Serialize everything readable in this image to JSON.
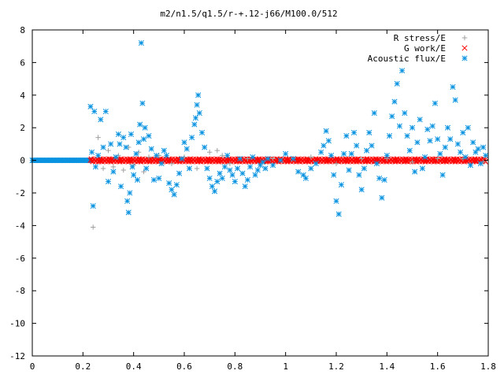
{
  "chart_data": {
    "type": "scatter",
    "title": "m2/n1.5/q1.5/r-+.12-j66/M100.0/512",
    "xlabel": "",
    "ylabel": "",
    "xlim": [
      0,
      1.8
    ],
    "ylim": [
      -12,
      8
    ],
    "xticks": [
      0,
      0.2,
      0.4,
      0.6,
      0.8,
      1,
      1.2,
      1.4,
      1.6,
      1.8
    ],
    "yticks": [
      -12,
      -10,
      -8,
      -6,
      -4,
      -2,
      0,
      2,
      4,
      6,
      8
    ],
    "xtick_labels": [
      "0",
      "0.2",
      "0.4",
      "0.6",
      "0.8",
      "1",
      "1.2",
      "1.4",
      "1.6",
      "1.8"
    ],
    "ytick_labels": [
      "-12",
      "-10",
      "-8",
      "-6",
      "-4",
      "-2",
      "0",
      "2",
      "4",
      "6",
      "8"
    ],
    "grid": false,
    "legend_position": "top-right",
    "series": [
      {
        "name": "R stress/E",
        "marker": "plus",
        "color": "#a0a0a0",
        "points": [
          [
            0.24,
            -4.1
          ],
          [
            0.26,
            1.4
          ],
          [
            0.28,
            -0.5
          ],
          [
            0.3,
            0.6
          ],
          [
            0.32,
            -0.4
          ],
          [
            0.34,
            0.3
          ],
          [
            0.36,
            -0.6
          ],
          [
            0.38,
            0.8
          ],
          [
            0.4,
            -0.3
          ],
          [
            0.42,
            0.5
          ],
          [
            0.44,
            -0.7
          ],
          [
            0.46,
            0.2
          ],
          [
            0.5,
            0.3
          ],
          [
            0.55,
            -0.2
          ],
          [
            0.6,
            0.2
          ],
          [
            0.65,
            -0.5
          ],
          [
            0.7,
            0.5
          ],
          [
            0.73,
            0.6
          ],
          [
            0.75,
            0.3
          ],
          [
            0.78,
            -0.2
          ],
          [
            0.85,
            0.1
          ],
          [
            0.95,
            0.1
          ],
          [
            1.1,
            0.2
          ],
          [
            1.2,
            -0.2
          ],
          [
            1.3,
            0.1
          ],
          [
            1.4,
            0.1
          ],
          [
            1.5,
            -0.1
          ],
          [
            1.6,
            0.1
          ],
          [
            1.7,
            0.1
          ],
          [
            1.78,
            -0.1
          ]
        ]
      },
      {
        "name": "G work/E",
        "marker": "cross",
        "color": "#ff0000",
        "x_range": [
          0.23,
          1.79
        ],
        "y_approx": 0.0,
        "spread": 0.08
      },
      {
        "name": "Acoustic flux/E",
        "marker": "star",
        "color": "#0a93e0",
        "baseline_x_range": [
          0,
          0.23
        ],
        "baseline_y": 0.0,
        "points": [
          [
            0.23,
            3.3
          ],
          [
            0.235,
            0.5
          ],
          [
            0.24,
            -2.8
          ],
          [
            0.245,
            3.0
          ],
          [
            0.25,
            -0.4
          ],
          [
            0.26,
            0.3
          ],
          [
            0.27,
            2.5
          ],
          [
            0.28,
            0.8
          ],
          [
            0.29,
            3.0
          ],
          [
            0.3,
            -1.3
          ],
          [
            0.31,
            1.0
          ],
          [
            0.32,
            -0.7
          ],
          [
            0.33,
            0.2
          ],
          [
            0.34,
            1.6
          ],
          [
            0.345,
            1.0
          ],
          [
            0.35,
            -1.6
          ],
          [
            0.36,
            1.4
          ],
          [
            0.37,
            0.8
          ],
          [
            0.375,
            -2.5
          ],
          [
            0.38,
            -3.2
          ],
          [
            0.385,
            -2.0
          ],
          [
            0.39,
            1.6
          ],
          [
            0.395,
            -0.4
          ],
          [
            0.4,
            -0.9
          ],
          [
            0.41,
            0.4
          ],
          [
            0.415,
            -1.2
          ],
          [
            0.42,
            1.1
          ],
          [
            0.425,
            2.2
          ],
          [
            0.43,
            7.2
          ],
          [
            0.435,
            3.5
          ],
          [
            0.44,
            1.3
          ],
          [
            0.445,
            2.0
          ],
          [
            0.45,
            -0.5
          ],
          [
            0.46,
            1.5
          ],
          [
            0.47,
            0.7
          ],
          [
            0.48,
            -1.2
          ],
          [
            0.49,
            0.3
          ],
          [
            0.5,
            -1.1
          ],
          [
            0.51,
            -0.2
          ],
          [
            0.52,
            0.6
          ],
          [
            0.53,
            0.3
          ],
          [
            0.54,
            -1.4
          ],
          [
            0.55,
            -1.8
          ],
          [
            0.56,
            -2.1
          ],
          [
            0.57,
            -1.5
          ],
          [
            0.58,
            -0.8
          ],
          [
            0.59,
            0.1
          ],
          [
            0.6,
            1.1
          ],
          [
            0.61,
            0.7
          ],
          [
            0.62,
            -0.5
          ],
          [
            0.63,
            1.4
          ],
          [
            0.64,
            2.2
          ],
          [
            0.645,
            2.6
          ],
          [
            0.65,
            3.4
          ],
          [
            0.655,
            4.0
          ],
          [
            0.66,
            2.9
          ],
          [
            0.67,
            1.7
          ],
          [
            0.68,
            0.8
          ],
          [
            0.69,
            -0.5
          ],
          [
            0.7,
            -1.1
          ],
          [
            0.71,
            -1.6
          ],
          [
            0.72,
            -1.9
          ],
          [
            0.73,
            -1.3
          ],
          [
            0.74,
            -0.8
          ],
          [
            0.75,
            -1.1
          ],
          [
            0.76,
            -0.4
          ],
          [
            0.77,
            0.3
          ],
          [
            0.78,
            -0.6
          ],
          [
            0.79,
            -0.9
          ],
          [
            0.8,
            -1.3
          ],
          [
            0.81,
            -0.5
          ],
          [
            0.82,
            0.1
          ],
          [
            0.83,
            -0.8
          ],
          [
            0.84,
            -1.6
          ],
          [
            0.85,
            -1.2
          ],
          [
            0.86,
            -0.4
          ],
          [
            0.87,
            0.2
          ],
          [
            0.88,
            -0.9
          ],
          [
            0.89,
            -0.6
          ],
          [
            0.9,
            -0.3
          ],
          [
            0.91,
            -0.1
          ],
          [
            0.92,
            -0.5
          ],
          [
            0.93,
            0.1
          ],
          [
            0.95,
            -0.3
          ],
          [
            0.98,
            0.0
          ],
          [
            1.0,
            0.4
          ],
          [
            1.03,
            0.1
          ],
          [
            1.05,
            -0.7
          ],
          [
            1.07,
            -0.9
          ],
          [
            1.08,
            -1.1
          ],
          [
            1.1,
            -0.5
          ],
          [
            1.12,
            -0.2
          ],
          [
            1.14,
            0.5
          ],
          [
            1.15,
            0.9
          ],
          [
            1.16,
            1.8
          ],
          [
            1.17,
            1.2
          ],
          [
            1.18,
            0.3
          ],
          [
            1.19,
            -0.9
          ],
          [
            1.2,
            -2.5
          ],
          [
            1.21,
            -3.3
          ],
          [
            1.22,
            -1.5
          ],
          [
            1.23,
            0.4
          ],
          [
            1.24,
            1.5
          ],
          [
            1.25,
            -0.6
          ],
          [
            1.26,
            0.4
          ],
          [
            1.27,
            1.7
          ],
          [
            1.28,
            0.9
          ],
          [
            1.29,
            -0.9
          ],
          [
            1.3,
            -1.8
          ],
          [
            1.31,
            -0.5
          ],
          [
            1.32,
            0.6
          ],
          [
            1.33,
            1.7
          ],
          [
            1.34,
            0.9
          ],
          [
            1.35,
            2.9
          ],
          [
            1.36,
            -0.2
          ],
          [
            1.37,
            -1.1
          ],
          [
            1.38,
            -2.3
          ],
          [
            1.39,
            -1.2
          ],
          [
            1.4,
            0.3
          ],
          [
            1.41,
            1.5
          ],
          [
            1.42,
            2.7
          ],
          [
            1.43,
            3.6
          ],
          [
            1.44,
            4.7
          ],
          [
            1.45,
            2.1
          ],
          [
            1.46,
            5.5
          ],
          [
            1.47,
            2.9
          ],
          [
            1.48,
            1.5
          ],
          [
            1.49,
            0.6
          ],
          [
            1.5,
            2.0
          ],
          [
            1.51,
            -0.7
          ],
          [
            1.52,
            1.1
          ],
          [
            1.53,
            2.5
          ],
          [
            1.54,
            -0.5
          ],
          [
            1.55,
            0.2
          ],
          [
            1.56,
            1.9
          ],
          [
            1.57,
            1.2
          ],
          [
            1.58,
            2.1
          ],
          [
            1.59,
            3.5
          ],
          [
            1.6,
            1.3
          ],
          [
            1.61,
            0.4
          ],
          [
            1.62,
            -0.9
          ],
          [
            1.63,
            0.8
          ],
          [
            1.64,
            2.0
          ],
          [
            1.65,
            1.3
          ],
          [
            1.66,
            4.5
          ],
          [
            1.67,
            3.7
          ],
          [
            1.68,
            1.0
          ],
          [
            1.69,
            0.5
          ],
          [
            1.7,
            1.7
          ],
          [
            1.71,
            0.2
          ],
          [
            1.72,
            2.0
          ],
          [
            1.73,
            -0.3
          ],
          [
            1.74,
            1.1
          ],
          [
            1.75,
            0.5
          ],
          [
            1.76,
            0.7
          ],
          [
            1.77,
            -0.2
          ],
          [
            1.78,
            0.8
          ],
          [
            1.79,
            0.3
          ]
        ]
      }
    ]
  }
}
